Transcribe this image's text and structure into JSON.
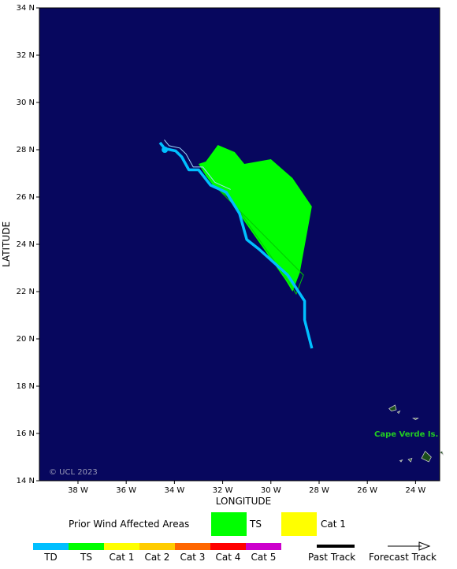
{
  "map": {
    "background_color": "#07075e",
    "land_color": "#1a4d1a",
    "x_axis_title": "LONGITUDE",
    "y_axis_title": "LATITUDE",
    "x_ticks": [
      {
        "lon": -38,
        "label": "38 W"
      },
      {
        "lon": -36,
        "label": "36 W"
      },
      {
        "lon": -34,
        "label": "34 W"
      },
      {
        "lon": -32,
        "label": "32 W"
      },
      {
        "lon": -30,
        "label": "30 W"
      },
      {
        "lon": -28,
        "label": "28 W"
      },
      {
        "lon": -26,
        "label": "26 W"
      },
      {
        "lon": -24,
        "label": "24 W"
      }
    ],
    "y_ticks": [
      {
        "lat": 14,
        "label": "14 N"
      },
      {
        "lat": 16,
        "label": "16 N"
      },
      {
        "lat": 18,
        "label": "18 N"
      },
      {
        "lat": 20,
        "label": "20 N"
      },
      {
        "lat": 22,
        "label": "22 N"
      },
      {
        "lat": 24,
        "label": "24 N"
      },
      {
        "lat": 26,
        "label": "26 N"
      },
      {
        "lat": 28,
        "label": "28 N"
      },
      {
        "lat": 30,
        "label": "30 N"
      },
      {
        "lat": 32,
        "label": "32 N"
      },
      {
        "lat": 34,
        "label": "34 N"
      }
    ],
    "copyright": "© UCL 2023",
    "place_label": "Cape Verde Is.",
    "place_label_color": "#22cc22"
  },
  "wind_area": {
    "color": "#00ff00",
    "category": "TS",
    "polygon": [
      [
        -33.0,
        27.4
      ],
      [
        -32.7,
        27.5
      ],
      [
        -32.2,
        28.2
      ],
      [
        -31.5,
        27.9
      ],
      [
        -31.1,
        27.4
      ],
      [
        -30.0,
        27.6
      ],
      [
        -29.1,
        26.8
      ],
      [
        -28.3,
        25.6
      ],
      [
        -28.8,
        22.8
      ],
      [
        -29.1,
        22.0
      ],
      [
        -29.4,
        22.5
      ],
      [
        -31.8,
        26.0
      ],
      [
        -32.4,
        26.5
      ],
      [
        -32.7,
        26.9
      ],
      [
        -33.0,
        27.4
      ]
    ]
  },
  "track": {
    "color": "#00bfff",
    "points": [
      [
        -34.6,
        28.3
      ],
      [
        -34.4,
        28.05
      ],
      [
        -33.95,
        27.95
      ],
      [
        -33.7,
        27.7
      ],
      [
        -33.4,
        27.15
      ],
      [
        -33.0,
        27.15
      ],
      [
        -32.5,
        26.5
      ],
      [
        -31.85,
        26.2
      ],
      [
        -31.3,
        25.3
      ],
      [
        -31.0,
        24.2
      ],
      [
        -30.5,
        23.8
      ],
      [
        -29.3,
        22.7
      ],
      [
        -28.6,
        21.6
      ],
      [
        -28.6,
        20.8
      ],
      [
        -28.3,
        19.6
      ]
    ],
    "position_marker": [
      -34.4,
      28.0
    ]
  },
  "islands": [
    {
      "points": [
        [
          -25.1,
          17.05
        ],
        [
          -24.85,
          17.2
        ],
        [
          -24.8,
          17.0
        ],
        [
          -25.0,
          16.95
        ]
      ]
    },
    {
      "points": [
        [
          -24.75,
          16.9
        ],
        [
          -24.65,
          16.95
        ],
        [
          -24.7,
          16.85
        ]
      ]
    },
    {
      "points": [
        [
          -24.1,
          16.65
        ],
        [
          -23.9,
          16.65
        ],
        [
          -24.0,
          16.58
        ]
      ]
    },
    {
      "points": [
        [
          -23.6,
          15.25
        ],
        [
          -23.35,
          15.0
        ],
        [
          -23.45,
          14.8
        ],
        [
          -23.75,
          14.95
        ]
      ]
    },
    {
      "points": [
        [
          -23.0,
          15.2
        ],
        [
          -22.9,
          15.25
        ],
        [
          -22.85,
          15.1
        ]
      ]
    },
    {
      "points": [
        [
          -24.3,
          14.9
        ],
        [
          -24.15,
          14.95
        ],
        [
          -24.2,
          14.8
        ]
      ]
    },
    {
      "points": [
        [
          -24.65,
          14.85
        ],
        [
          -24.55,
          14.88
        ],
        [
          -24.6,
          14.8
        ]
      ]
    }
  ],
  "legend": {
    "wind_title": "Prior Wind Affected Areas",
    "wind_items": [
      {
        "label": "TS",
        "color": "#00ff00"
      },
      {
        "label": "Cat 1",
        "color": "#ffff00"
      }
    ],
    "scale": [
      {
        "label": "TD",
        "color": "#00bfff"
      },
      {
        "label": "TS",
        "color": "#00ff00"
      },
      {
        "label": "Cat 1",
        "color": "#ffff00"
      },
      {
        "label": "Cat 2",
        "color": "#ffcc00"
      },
      {
        "label": "Cat 3",
        "color": "#ff6600"
      },
      {
        "label": "Cat 4",
        "color": "#ff0000"
      },
      {
        "label": "Cat 5",
        "color": "#cc00cc"
      }
    ],
    "past_track_label": "Past Track",
    "forecast_track_label": "Forecast Track"
  }
}
